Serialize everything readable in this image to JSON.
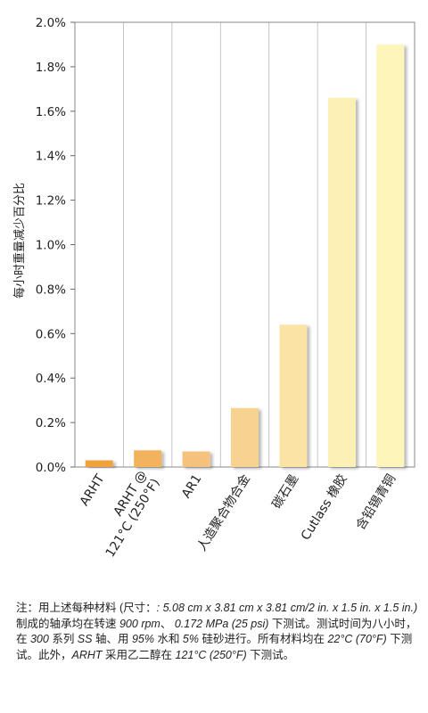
{
  "chart_data": {
    "type": "bar",
    "ylabel": "每小时重量减少百分比",
    "ylim": [
      0,
      2.0
    ],
    "yticks": [
      0.0,
      0.2,
      0.4,
      0.6,
      0.8,
      1.0,
      1.2,
      1.4,
      1.6,
      1.8,
      2.0
    ],
    "ytick_labels": [
      "0.0%",
      "0.2%",
      "0.4%",
      "0.6%",
      "0.8%",
      "1.0%",
      "1.2%",
      "1.4%",
      "1.6%",
      "1.8%",
      "2.0%"
    ],
    "grid": "vertical",
    "categories": [
      [
        "ARHT"
      ],
      [
        "ARHT @",
        "121°C (250°F)"
      ],
      [
        "AR1"
      ],
      [
        "人造聚合物合金"
      ],
      [
        "碳石墨"
      ],
      [
        "Cutlass 橡胶"
      ],
      [
        "含铅锡青铜"
      ]
    ],
    "values": [
      0.03,
      0.075,
      0.07,
      0.265,
      0.64,
      1.66,
      1.9
    ],
    "colors": [
      "#f0a23a",
      "#f3b35c",
      "#f5c27e",
      "#f8d290",
      "#fbe3a6",
      "#fcf0b4",
      "#fdf5ba"
    ]
  },
  "footnote": {
    "parts": [
      {
        "text": "注：用上述每种材料 (尺寸：",
        "italic": false
      },
      {
        "text": ": 5.08 cm x 3.81 cm x 3.81 cm/2 in. x 1.5 in. x 1.5 in.)",
        "italic": true
      },
      {
        "text": " 制成的轴承均在转速 ",
        "italic": false
      },
      {
        "text": "900 rpm",
        "italic": true
      },
      {
        "text": "、 ",
        "italic": false
      },
      {
        "text": "0.172 MPa (25 psi)",
        "italic": true
      },
      {
        "text": " 下测试。测试时间为八小时，在 ",
        "italic": false
      },
      {
        "text": "300",
        "italic": true
      },
      {
        "text": " 系列 ",
        "italic": false
      },
      {
        "text": "SS",
        "italic": true
      },
      {
        "text": " 轴、用 ",
        "italic": false
      },
      {
        "text": "95%",
        "italic": true
      },
      {
        "text": " 水和 ",
        "italic": false
      },
      {
        "text": "5%",
        "italic": true
      },
      {
        "text": " 硅砂进行。所有材料均在 ",
        "italic": false
      },
      {
        "text": "22°C (70°F)",
        "italic": true
      },
      {
        "text": " 下测试。此外，",
        "italic": false
      },
      {
        "text": "ARHT",
        "italic": true
      },
      {
        "text": " 采用乙二醇在 ",
        "italic": false
      },
      {
        "text": "121°C (250°F)",
        "italic": true
      },
      {
        "text": " 下测试。",
        "italic": false
      }
    ]
  }
}
